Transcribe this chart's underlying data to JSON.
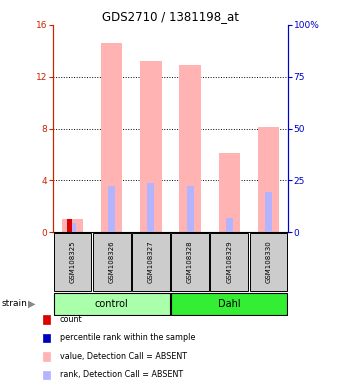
{
  "title": "GDS2710 / 1381198_at",
  "samples": [
    "GSM108325",
    "GSM108326",
    "GSM108327",
    "GSM108328",
    "GSM108329",
    "GSM108330"
  ],
  "groups": [
    {
      "name": "control",
      "color": "#aaffaa"
    },
    {
      "name": "Dahl",
      "color": "#33ee33"
    }
  ],
  "group_label": "strain",
  "pink_bars": [
    1.0,
    14.6,
    13.2,
    12.9,
    6.1,
    8.1
  ],
  "blue_bars": [
    0.7,
    3.6,
    3.8,
    3.6,
    1.1,
    3.1
  ],
  "red_bars": [
    1.0,
    0.0,
    0.0,
    0.0,
    0.0,
    0.0
  ],
  "ylim_left": [
    0,
    16
  ],
  "ylim_right": [
    0,
    100
  ],
  "yticks_left": [
    0,
    4,
    8,
    12,
    16
  ],
  "yticks_right": [
    0,
    25,
    50,
    75,
    100
  ],
  "yticklabels_right": [
    "0",
    "25",
    "50",
    "75",
    "100%"
  ],
  "pink_color": "#ffb3b3",
  "blue_color": "#b3b3ff",
  "red_color": "#dd0000",
  "dark_blue_color": "#0000bb",
  "legend_items": [
    {
      "color": "#dd0000",
      "label": "count"
    },
    {
      "color": "#0000bb",
      "label": "percentile rank within the sample"
    },
    {
      "color": "#ffb3b3",
      "label": "value, Detection Call = ABSENT"
    },
    {
      "color": "#b3b3ff",
      "label": "rank, Detection Call = ABSENT"
    }
  ],
  "axis_color_left": "#cc2200",
  "axis_color_right": "#0000cc",
  "sample_box_color": "#cccccc"
}
